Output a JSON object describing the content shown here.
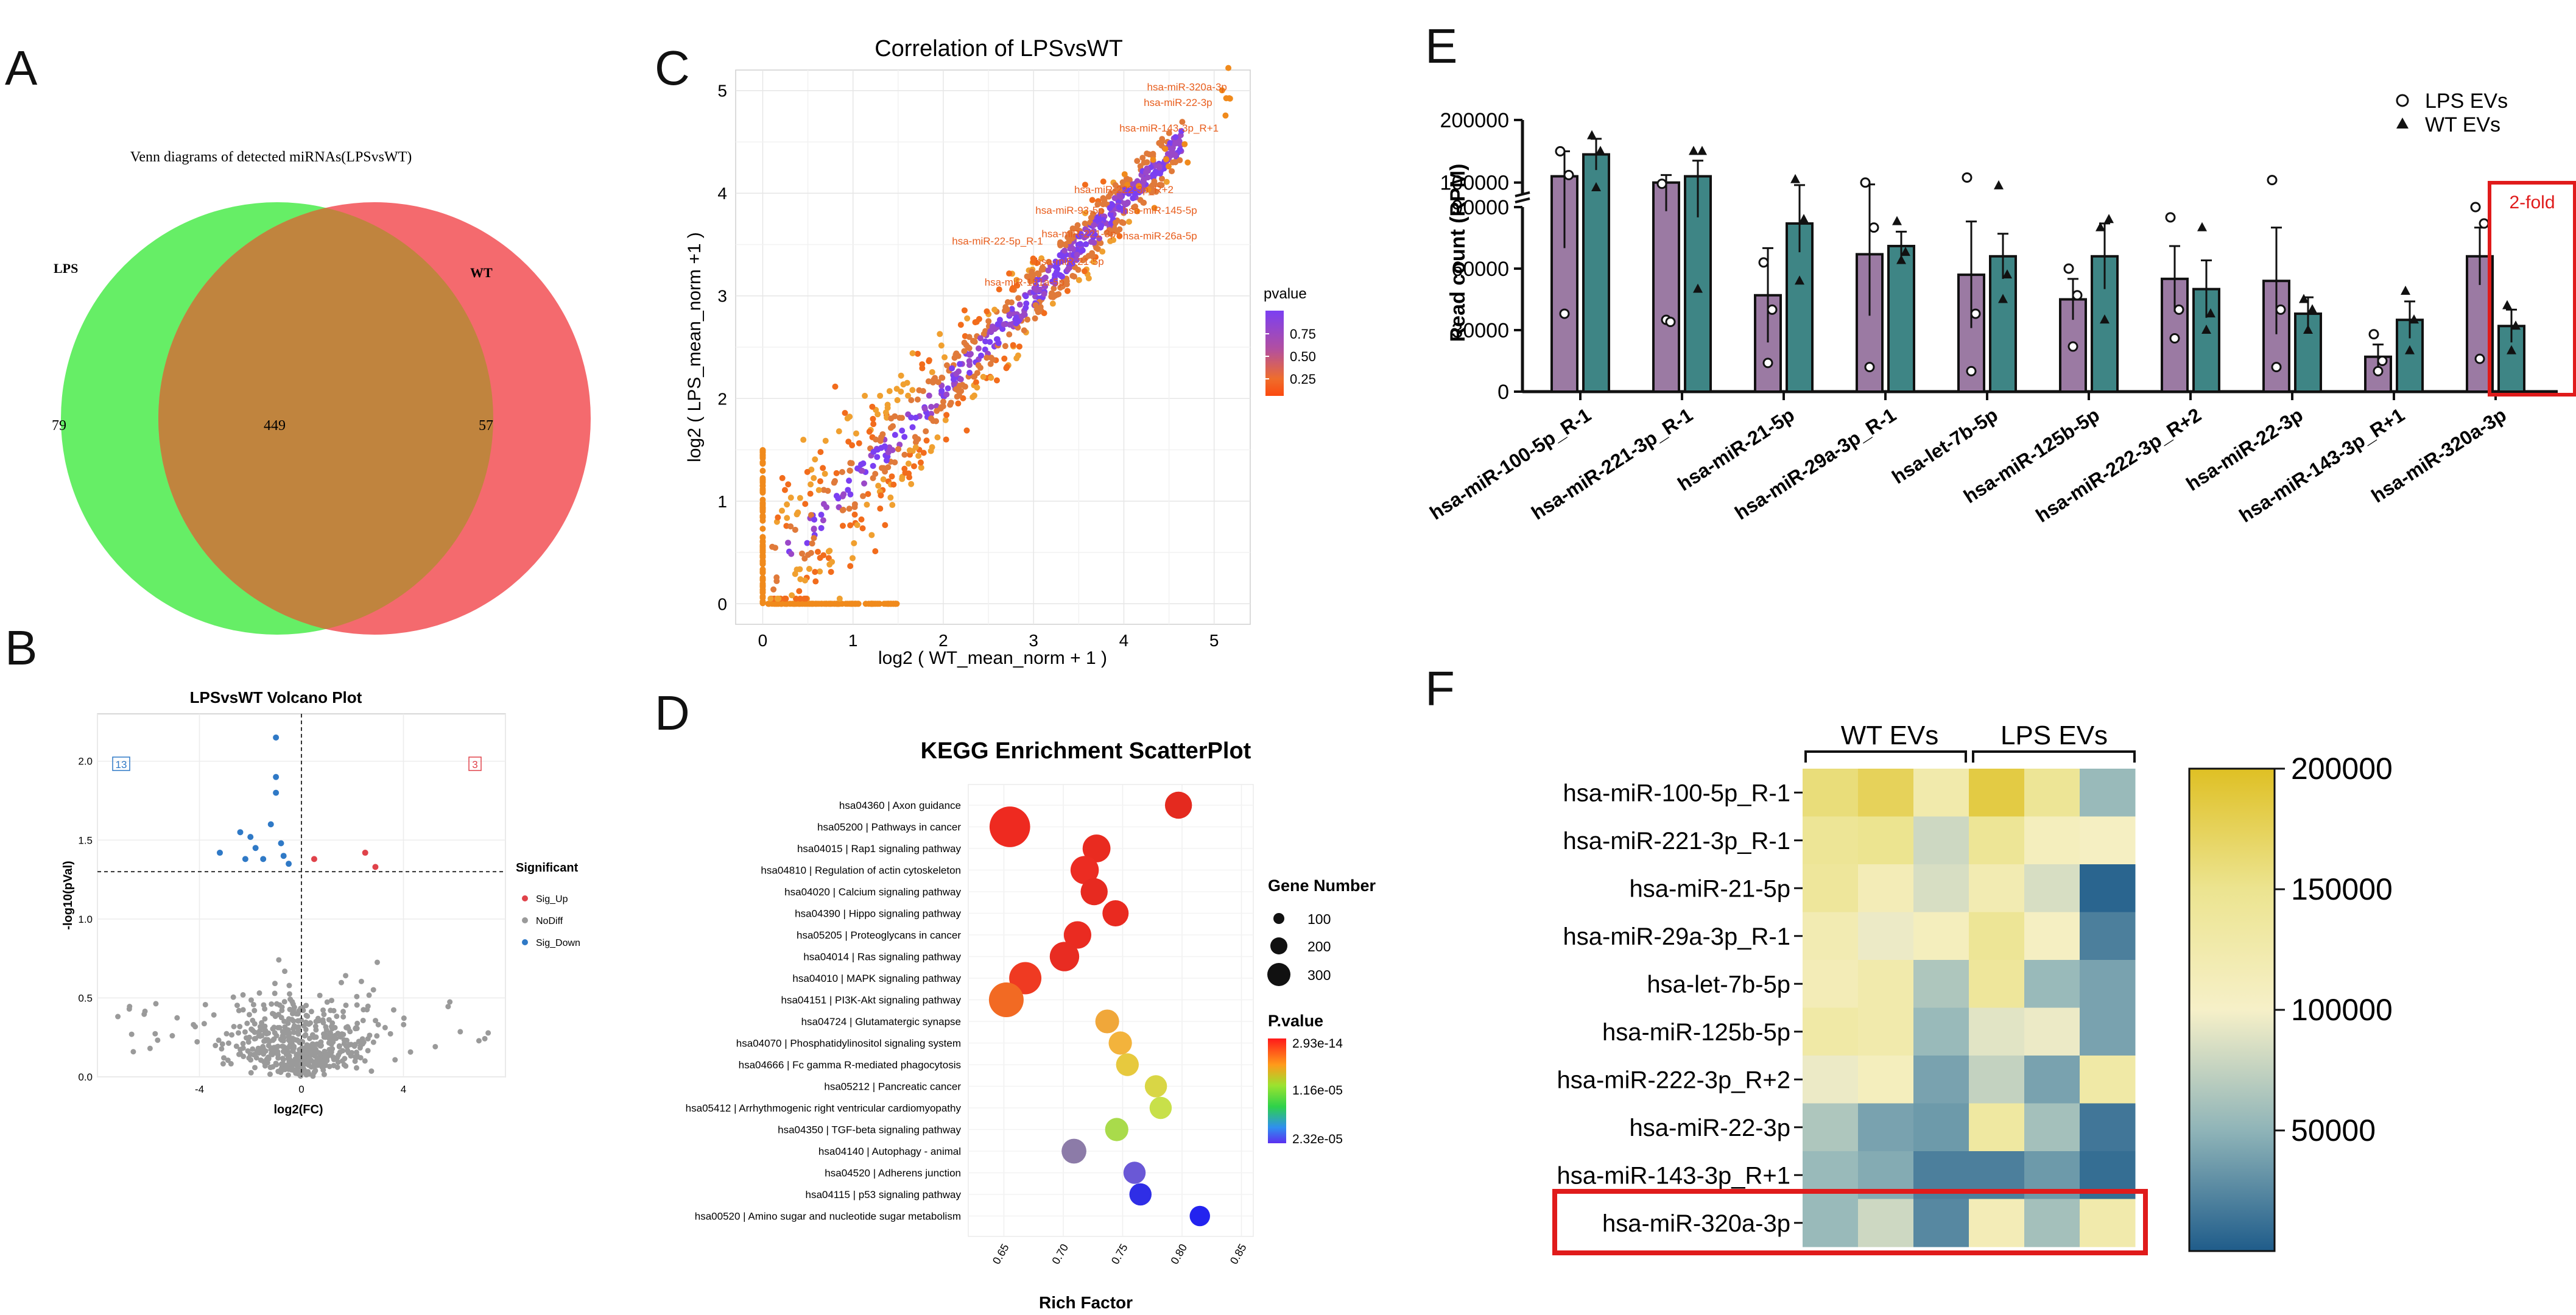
{
  "panels": {
    "a": "A",
    "b": "B",
    "c": "C",
    "d": "D",
    "e": "E",
    "f": "F"
  },
  "colors": {
    "lps_circle": "#66ee66",
    "wt_circle": "#f46a6e",
    "overlap": "#c0843e",
    "lps_bar": "#9b7aa3",
    "wt_bar": "#3e8585",
    "highlight": "#e01b1b",
    "volcano_up": "#e0424a",
    "volcano_nodiff": "#9a9a9a",
    "volcano_down": "#2f79c6"
  },
  "chart_data": [
    {
      "id": "venn",
      "type": "venn",
      "title": "Venn diagrams of detected miRNAs(LPSvsWT)",
      "sets": [
        "LPS",
        "WT"
      ],
      "only_lps": "79",
      "both": "449",
      "only_wt": "57"
    },
    {
      "id": "volcano",
      "type": "scatter",
      "title": "LPSvsWT Volcano Plot",
      "xlabel": "log2(FC)",
      "ylabel": "-log10(pVal)",
      "xticks": [
        "-4",
        "0",
        "4"
      ],
      "yticks": [
        "0.0",
        "0.5",
        "1.0",
        "1.5",
        "2.0"
      ],
      "xlim": [
        -8,
        8
      ],
      "ylim": [
        0,
        2.3
      ],
      "count_down": "13",
      "count_up": "3",
      "threshold_y": 1.3,
      "threshold_x": 0,
      "legend_title": "Significant",
      "legend": [
        "Sig_Up",
        "NoDiff",
        "Sig_Down"
      ],
      "sig_down_points": [
        [
          -1.0,
          2.15
        ],
        [
          -1.0,
          1.9
        ],
        [
          -1.0,
          1.8
        ],
        [
          -2.0,
          1.52
        ],
        [
          -1.2,
          1.6
        ],
        [
          -3.2,
          1.42
        ],
        [
          -2.2,
          1.38
        ],
        [
          -1.5,
          1.38
        ],
        [
          -0.7,
          1.4
        ],
        [
          -1.8,
          1.45
        ],
        [
          -0.8,
          1.48
        ],
        [
          -2.4,
          1.55
        ],
        [
          -0.5,
          1.35
        ]
      ],
      "sig_up_points": [
        [
          0.5,
          1.38
        ],
        [
          2.5,
          1.42
        ],
        [
          2.9,
          1.33
        ]
      ]
    },
    {
      "id": "correlation",
      "type": "scatter",
      "title": "Correlation of LPSvsWT",
      "xlabel": "log2 ( WT_mean_norm + 1 )",
      "ylabel": "log2 ( LPS_mean_norm +1  )",
      "xticks": [
        "0",
        "1",
        "2",
        "3",
        "4",
        "5"
      ],
      "yticks": [
        "0",
        "1",
        "2",
        "3",
        "4",
        "5"
      ],
      "xlim": [
        -0.3,
        5.4
      ],
      "ylim": [
        -0.2,
        5.2
      ],
      "legend_title": "pvalue",
      "legend_ticks": [
        "0.75",
        "0.50",
        "0.25"
      ],
      "labels": [
        {
          "text": "hsa-miR-320a-3p",
          "x": 4.7,
          "y": 5.0
        },
        {
          "text": "hsa-miR-143-3p_R+1",
          "x": 4.5,
          "y": 4.6
        },
        {
          "text": "hsa-miR-22-3p",
          "x": 4.6,
          "y": 4.85
        },
        {
          "text": "hsa-miR-222-3p_R+2",
          "x": 4.0,
          "y": 4.0
        },
        {
          "text": "hsa-miR-93-5p",
          "x": 3.4,
          "y": 3.8
        },
        {
          "text": "hsa-miR-145-5p",
          "x": 4.4,
          "y": 3.8
        },
        {
          "text": "hsa-miR-22-5p_R-1",
          "x": 2.6,
          "y": 3.5
        },
        {
          "text": "hsa-miR-221-3p",
          "x": 3.5,
          "y": 3.57
        },
        {
          "text": "hsa-miR-26a-5p",
          "x": 4.4,
          "y": 3.55
        },
        {
          "text": "hsa-miR-21-5p",
          "x": 3.4,
          "y": 3.3
        },
        {
          "text": "hsa-miR-181a-5p",
          "x": 2.9,
          "y": 3.1
        }
      ]
    },
    {
      "id": "kegg",
      "type": "scatter",
      "title": "KEGG Enrichment ScatterPlot",
      "xlabel": "Rich Factor",
      "xticks": [
        "0.65",
        "0.70",
        "0.75",
        "0.80",
        "0.85"
      ],
      "xlim": [
        0.62,
        0.86
      ],
      "size_legend_title": "Gene Number",
      "size_legend": [
        "100",
        "200",
        "300"
      ],
      "color_legend_title": "P.value",
      "color_legend_ticks": [
        "2.93e-14",
        "1.16e-05",
        "2.32e-05"
      ],
      "pathways": [
        {
          "name": "hsa04360 | Axon guidance",
          "rich": 0.797,
          "genes": 110,
          "color": "#e42a1f"
        },
        {
          "name": "hsa05200 | Pathways in cancer",
          "rich": 0.655,
          "genes": 330,
          "color": "#ee2a20"
        },
        {
          "name": "hsa04015 | Rap1 signaling pathway",
          "rich": 0.728,
          "genes": 120,
          "color": "#e92b20"
        },
        {
          "name": "hsa04810 | Regulation of actin cytoskeleton",
          "rich": 0.718,
          "genes": 125,
          "color": "#ec2c22"
        },
        {
          "name": "hsa04020 | Calcium signaling pathway",
          "rich": 0.726,
          "genes": 110,
          "color": "#e72a20"
        },
        {
          "name": "hsa04390 | Hippo signaling pathway",
          "rich": 0.744,
          "genes": 100,
          "color": "#e92a20"
        },
        {
          "name": "hsa05205 | Proteoglycans in cancer",
          "rich": 0.712,
          "genes": 115,
          "color": "#ea2b21"
        },
        {
          "name": "hsa04014 | Ras signaling pathway",
          "rich": 0.701,
          "genes": 140,
          "color": "#e82c22"
        },
        {
          "name": "hsa04010 | MAPK signaling pathway",
          "rich": 0.668,
          "genes": 180,
          "color": "#ef3a22"
        },
        {
          "name": "hsa04151 | PI3K-Akt signaling pathway",
          "rich": 0.652,
          "genes": 220,
          "color": "#f26a23"
        },
        {
          "name": "hsa04724 | Glutamatergic synapse",
          "rich": 0.737,
          "genes": 75,
          "color": "#f0a73a"
        },
        {
          "name": "hsa04070 | Phosphatidylinositol signaling system",
          "rich": 0.748,
          "genes": 70,
          "color": "#f3b33c"
        },
        {
          "name": "hsa04666 | Fc gamma R-mediated phagocytosis",
          "rich": 0.754,
          "genes": 65,
          "color": "#e7c93e"
        },
        {
          "name": "hsa05212 | Pancreatic cancer",
          "rich": 0.778,
          "genes": 60,
          "color": "#d9d645"
        },
        {
          "name": "hsa05412 | Arrhythmogenic right ventricular cardiomyopathy",
          "rich": 0.782,
          "genes": 60,
          "color": "#c8e04a"
        },
        {
          "name": "hsa04350 | TGF-beta signaling pathway",
          "rich": 0.745,
          "genes": 70,
          "color": "#a9db4b"
        },
        {
          "name": "hsa04140 | Autophagy - animal",
          "rich": 0.709,
          "genes": 85,
          "color": "#8c7ba8"
        },
        {
          "name": "hsa04520 | Adherens junction",
          "rich": 0.76,
          "genes": 60,
          "color": "#6a58d6"
        },
        {
          "name": "hsa04115 | p53 signaling pathway",
          "rich": 0.765,
          "genes": 60,
          "color": "#2f2ee6"
        },
        {
          "name": "hsa00520 | Amino sugar and nucleotide sugar metabolism",
          "rich": 0.815,
          "genes": 45,
          "color": "#2323ef"
        }
      ]
    },
    {
      "id": "bar",
      "type": "bar",
      "ylabel": "Read count (RPM)",
      "yticks_low": [
        "0",
        "30000",
        "60000",
        "90000"
      ],
      "yticks_high": [
        "100000",
        "200000"
      ],
      "axis_break": 90000,
      "legend": [
        "LPS EVs",
        "WT EVs"
      ],
      "annotation": "2-fold",
      "categories": [
        "hsa-miR-100-5p_R-1",
        "hsa-miR-221-3p_R-1",
        "hsa-miR-21-5p",
        "hsa-miR-29a-3p_R-1",
        "hsa-let-7b-5p",
        "hsa-miR-125b-5p",
        "hsa-miR-222-3p_R+2",
        "hsa-miR-22-3p",
        "hsa-miR-143-3p_R+1",
        "hsa-miR-320a-3p"
      ],
      "series": [
        {
          "name": "LPS EVs",
          "values": [
            110000,
            100000,
            47000,
            67000,
            57000,
            45000,
            55000,
            54000,
            17000,
            66000
          ],
          "err": [
            40000,
            12000,
            23000,
            30000,
            26000,
            10000,
            16000,
            26000,
            6000,
            14000
          ],
          "points": [
            [
              150000,
              38000,
              112000
            ],
            [
              98000,
              35000,
              34000
            ],
            [
              63000,
              14000,
              40000
            ],
            [
              100000,
              12000,
              80000
            ],
            [
              108000,
              10000,
              38000
            ],
            [
              60000,
              22000,
              47000
            ],
            [
              85000,
              26000,
              40000
            ],
            [
              104000,
              12000,
              40000
            ],
            [
              28000,
              10000,
              15000
            ],
            [
              90000,
              16000,
              82000
            ]
          ]
        },
        {
          "name": "WT EVs",
          "values": [
            145000,
            110000,
            82000,
            71000,
            66000,
            66000,
            50000,
            38000,
            35000,
            32000
          ],
          "err": [
            25000,
            25000,
            14000,
            7000,
            11000,
            16000,
            14000,
            8000,
            9000,
            8000
          ],
          "points": [
            [
              175000,
              92000,
              150000
            ],
            [
              150000,
              50000,
              150000
            ],
            [
              105000,
              54000,
              84000
            ],
            [
              83000,
              64000,
              68000
            ],
            [
              95000,
              45000,
              57000
            ],
            [
              80000,
              35000,
              84000
            ],
            [
              80000,
              30000,
              38000
            ],
            [
              45000,
              30000,
              40000
            ],
            [
              49000,
              20000,
              35000
            ],
            [
              42000,
              20000,
              32000
            ]
          ]
        }
      ]
    },
    {
      "id": "heatmap",
      "type": "heatmap",
      "groups": [
        "WT EVs",
        "LPS EVs"
      ],
      "rows": [
        "hsa-miR-100-5p_R-1",
        "hsa-miR-221-3p_R-1",
        "hsa-miR-21-5p",
        "hsa-miR-29a-3p_R-1",
        "hsa-let-7b-5p",
        "hsa-miR-125b-5p",
        "hsa-miR-222-3p_R+2",
        "hsa-miR-22-3p",
        "hsa-miR-143-3p_R+1",
        "hsa-miR-320a-3p"
      ],
      "values": [
        [
          160000,
          175000,
          125000,
          185000,
          145000,
          55000
        ],
        [
          145000,
          150000,
          80000,
          145000,
          110000,
          105000
        ],
        [
          140000,
          115000,
          85000,
          120000,
          85000,
          5000
        ],
        [
          120000,
          95000,
          110000,
          145000,
          105000,
          20000
        ],
        [
          115000,
          125000,
          65000,
          140000,
          55000,
          40000
        ],
        [
          130000,
          125000,
          55000,
          90000,
          95000,
          40000
        ],
        [
          95000,
          110000,
          40000,
          75000,
          40000,
          130000
        ],
        [
          65000,
          40000,
          35000,
          135000,
          60000,
          15000
        ],
        [
          55000,
          45000,
          20000,
          20000,
          35000,
          10000
        ],
        [
          55000,
          80000,
          25000,
          115000,
          60000,
          125000
        ]
      ],
      "scale_ticks": [
        "200000",
        "150000",
        "100000",
        "50000"
      ],
      "vmin": 0,
      "vmax": 200000
    }
  ]
}
